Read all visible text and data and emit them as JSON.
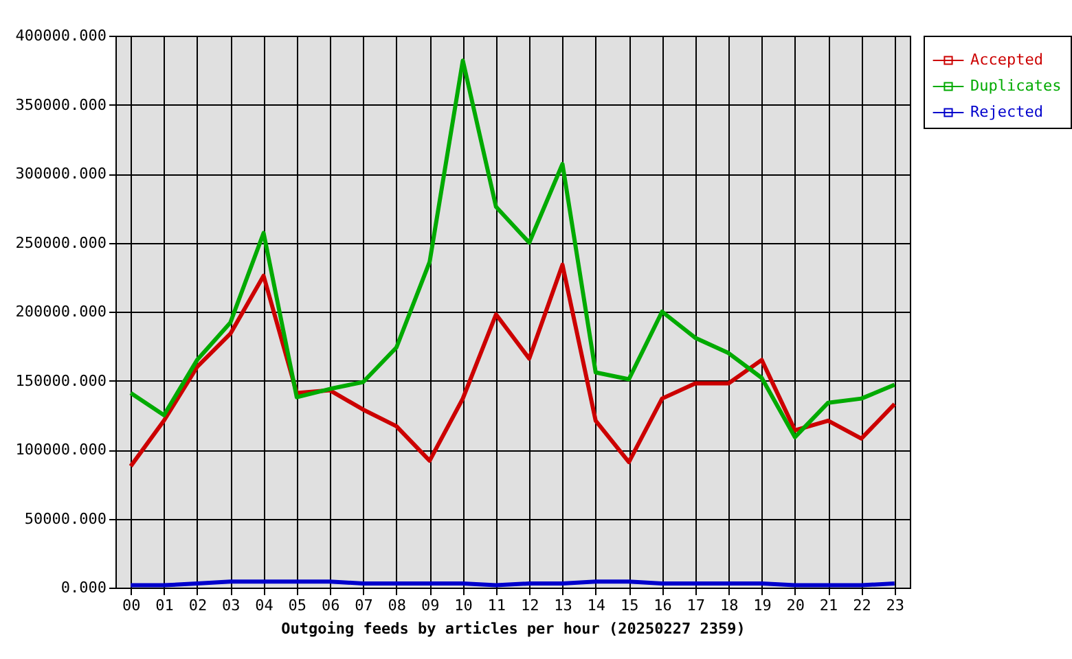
{
  "chart_data": {
    "type": "line",
    "xlabel": "Outgoing feeds by articles per hour (20250227 2359)",
    "categories": [
      "00",
      "01",
      "02",
      "03",
      "04",
      "05",
      "06",
      "07",
      "08",
      "09",
      "10",
      "11",
      "12",
      "13",
      "14",
      "15",
      "16",
      "17",
      "18",
      "19",
      "20",
      "21",
      "22",
      "23"
    ],
    "series": [
      {
        "name": "Accepted",
        "color": "#cc0000",
        "values": [
          88000,
          121000,
          160000,
          184000,
          226000,
          141000,
          143000,
          129000,
          117000,
          92000,
          137000,
          198000,
          166000,
          234000,
          121000,
          91000,
          137000,
          148000,
          148000,
          165000,
          114000,
          121000,
          108000,
          133000
        ]
      },
      {
        "name": "Duplicates",
        "color": "#00aa00",
        "values": [
          141000,
          125000,
          165000,
          192000,
          257000,
          138000,
          144000,
          149000,
          174000,
          236000,
          382000,
          276000,
          250000,
          307000,
          156000,
          151000,
          200000,
          181000,
          170000,
          152000,
          109000,
          134000,
          137000,
          147000
        ]
      },
      {
        "name": "Rejected",
        "color": "#0000cc",
        "values": [
          1700,
          1700,
          3000,
          4300,
          4300,
          4300,
          4300,
          3000,
          3000,
          3000,
          3000,
          1700,
          3000,
          3000,
          4300,
          4300,
          3000,
          3000,
          3000,
          3000,
          1700,
          1700,
          1700,
          3000
        ]
      }
    ],
    "ylim": [
      0,
      400000
    ],
    "yticks": [
      {
        "value": 0,
        "label": "0.000"
      },
      {
        "value": 50000,
        "label": "50000.000"
      },
      {
        "value": 100000,
        "label": "100000.000"
      },
      {
        "value": 150000,
        "label": "150000.000"
      },
      {
        "value": 200000,
        "label": "200000.000"
      },
      {
        "value": 250000,
        "label": "250000.000"
      },
      {
        "value": 300000,
        "label": "300000.000"
      },
      {
        "value": 350000,
        "label": "350000.000"
      },
      {
        "value": 400000,
        "label": "400000.000"
      }
    ],
    "grid": true,
    "legend": "top right"
  }
}
